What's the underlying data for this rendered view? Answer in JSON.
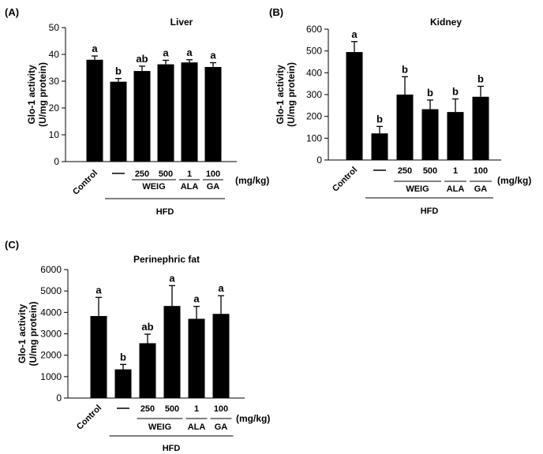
{
  "chart_data": [
    {
      "type": "bar",
      "panel": "(A)",
      "title": "Liver",
      "ylabel_line1": "Glo-1 activity",
      "ylabel_line2": "(U/mg protein)",
      "ylim": [
        0,
        50
      ],
      "yticks": [
        0,
        10,
        20,
        30,
        40,
        50
      ],
      "categories": [
        "Control",
        "—",
        "250",
        "500",
        "1",
        "100"
      ],
      "values": [
        38,
        29.8,
        33.8,
        36.3,
        37,
        35.3
      ],
      "errors": [
        1.4,
        1.2,
        1.8,
        1.5,
        1.0,
        1.6
      ],
      "significance": [
        "a",
        "b",
        "ab",
        "a",
        "a",
        "a"
      ],
      "unit_label": "(mg/kg)",
      "groups": [
        {
          "label": "WEIG",
          "from": 2,
          "to": 3
        },
        {
          "label": "ALA",
          "from": 4,
          "to": 4
        },
        {
          "label": "GA",
          "from": 5,
          "to": 5
        }
      ],
      "hfd_label": "HFD"
    },
    {
      "type": "bar",
      "panel": "(B)",
      "title": "Kidney",
      "ylabel_line1": "Glo-1 activity",
      "ylabel_line2": "(U/mg protein)",
      "ylim": [
        0,
        600
      ],
      "yticks": [
        0,
        100,
        200,
        300,
        400,
        500,
        600
      ],
      "categories": [
        "Control",
        "—",
        "250",
        "500",
        "1",
        "100"
      ],
      "values": [
        495,
        122,
        300,
        233,
        220,
        290
      ],
      "errors": [
        48,
        32,
        82,
        42,
        60,
        48
      ],
      "significance": [
        "a",
        "b",
        "b",
        "b",
        "b",
        "b"
      ],
      "unit_label": "(mg/kg)",
      "groups": [
        {
          "label": "WEIG",
          "from": 2,
          "to": 3
        },
        {
          "label": "ALA",
          "from": 4,
          "to": 4
        },
        {
          "label": "GA",
          "from": 5,
          "to": 5
        }
      ],
      "hfd_label": "HFD"
    },
    {
      "type": "bar",
      "panel": "(C)",
      "title": "Perinephric fat",
      "ylabel_line1": "Glo-1 activity",
      "ylabel_line2": "(U/mg protein)",
      "ylim": [
        0,
        6000
      ],
      "yticks": [
        0,
        1000,
        2000,
        3000,
        4000,
        5000,
        6000
      ],
      "categories": [
        "Control",
        "—",
        "250",
        "500",
        "1",
        "100"
      ],
      "values": [
        3830,
        1340,
        2560,
        4300,
        3700,
        3930
      ],
      "errors": [
        870,
        230,
        420,
        950,
        580,
        850
      ],
      "significance": [
        "a",
        "b",
        "ab",
        "a",
        "a",
        "a"
      ],
      "unit_label": "(mg/kg)",
      "groups": [
        {
          "label": "WEIG",
          "from": 2,
          "to": 3
        },
        {
          "label": "ALA",
          "from": 4,
          "to": 4
        },
        {
          "label": "GA",
          "from": 5,
          "to": 5
        }
      ],
      "hfd_label": "HFD"
    }
  ]
}
